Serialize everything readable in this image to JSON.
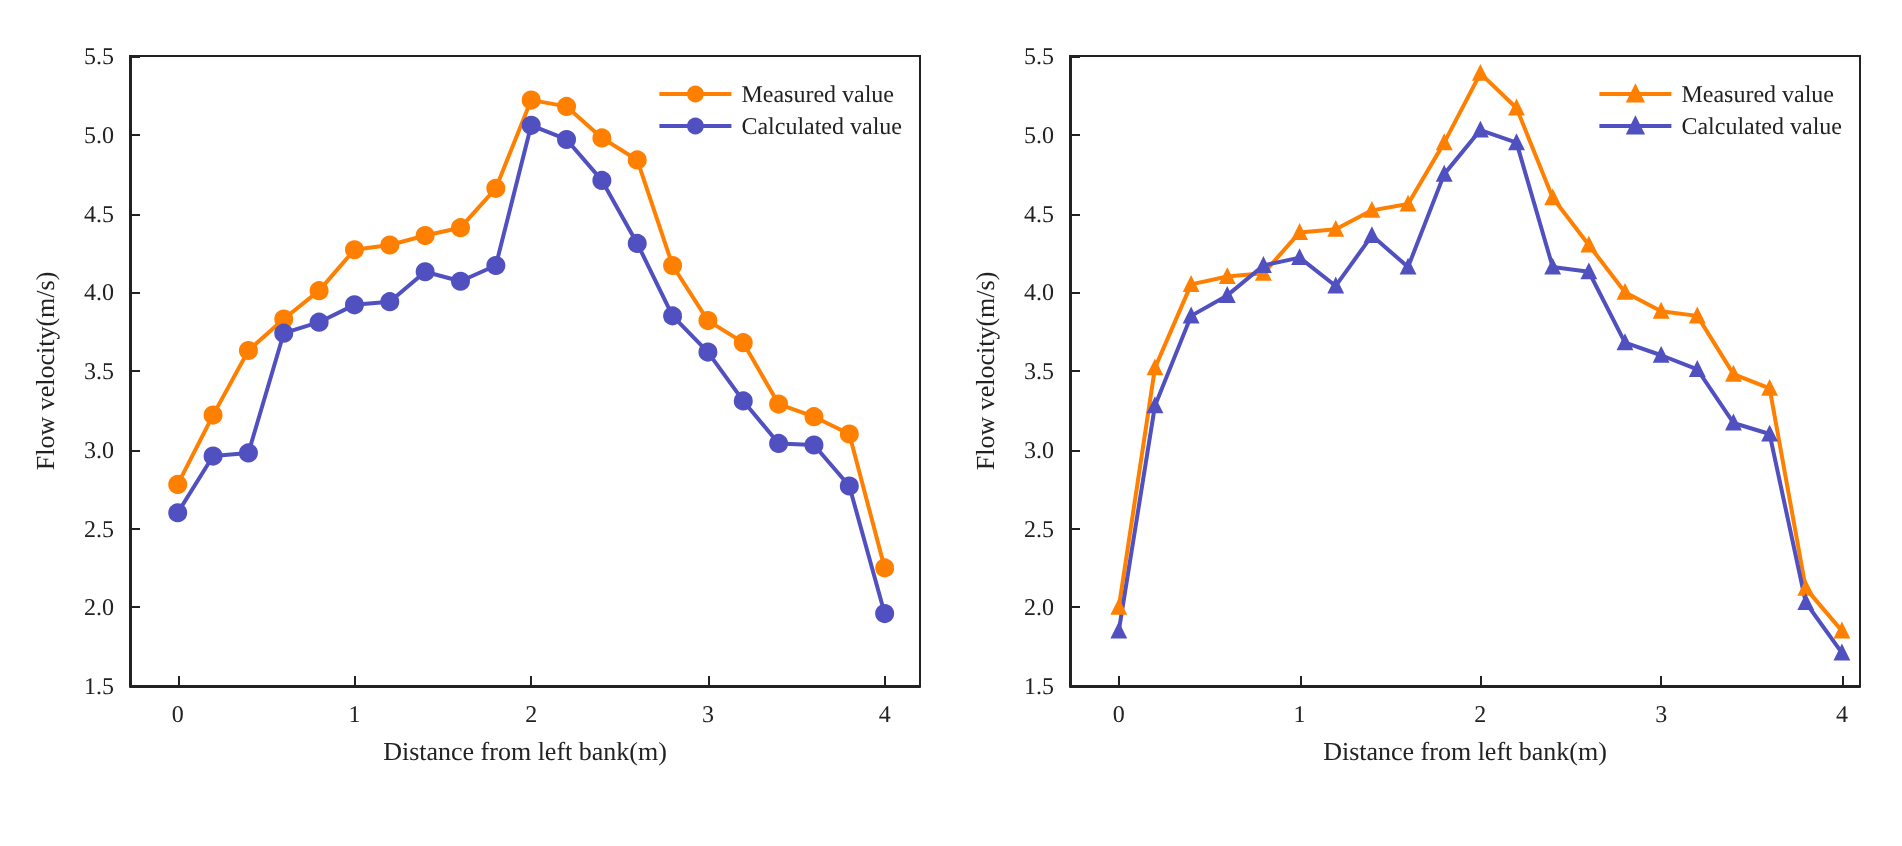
{
  "chart_data": [
    {
      "type": "line",
      "xlabel": "Distance from left bank(m)",
      "ylabel": "Flow velocity(m/s)",
      "x": [
        0,
        0.2,
        0.4,
        0.6,
        0.8,
        1,
        1.2,
        1.4,
        1.6,
        1.8,
        2,
        2.2,
        2.4,
        2.6,
        2.8,
        3,
        3.2,
        3.4,
        3.6,
        3.8,
        4
      ],
      "series": [
        {
          "name": "Measured value",
          "color": "#ff8000",
          "values": [
            2.78,
            3.22,
            3.63,
            3.83,
            4.01,
            4.27,
            4.3,
            4.36,
            4.41,
            4.66,
            5.22,
            5.18,
            4.98,
            4.84,
            4.17,
            3.82,
            3.68,
            3.29,
            3.21,
            3.1,
            2.25
          ]
        },
        {
          "name": "Calculated value",
          "color": "#5050c0",
          "values": [
            2.6,
            2.96,
            2.98,
            3.74,
            3.81,
            3.92,
            3.94,
            4.13,
            4.07,
            4.17,
            5.06,
            4.97,
            4.71,
            4.31,
            3.85,
            3.62,
            3.31,
            3.04,
            3.03,
            2.77,
            1.96
          ]
        }
      ],
      "xlim": [
        -0.27,
        4.2
      ],
      "xticks": [
        0,
        1,
        2,
        3,
        4
      ],
      "ylim": [
        1.5,
        5.5
      ],
      "yticks": [
        1.5,
        {
          "value": 2,
          "label": "2.0"
        },
        2.5,
        {
          "value": 3,
          "label": "3.0"
        },
        3.5,
        {
          "value": 4,
          "label": "4.0"
        },
        4.5,
        {
          "value": 5,
          "label": "5.0"
        },
        5.5
      ],
      "grid": false,
      "legend": "top right",
      "marker": "circle",
      "line_style": "solid"
    },
    {
      "type": "line",
      "xlabel": "Distance from left bank(m)",
      "ylabel": "Flow velocity(m/s)",
      "x": [
        0,
        0.2,
        0.4,
        0.6,
        0.8,
        1,
        1.2,
        1.4,
        1.6,
        1.8,
        2,
        2.2,
        2.4,
        2.6,
        2.8,
        3,
        3.2,
        3.4,
        3.6,
        3.8,
        4
      ],
      "series": [
        {
          "name": "Measured value",
          "color": "#ff8000",
          "values": [
            2.0,
            3.52,
            4.05,
            4.1,
            4.12,
            4.38,
            4.4,
            4.52,
            4.56,
            4.95,
            5.39,
            5.17,
            4.6,
            4.3,
            4.0,
            3.88,
            3.85,
            3.48,
            3.39,
            2.12,
            1.85
          ]
        },
        {
          "name": "Calculated value",
          "color": "#5050c0",
          "values": [
            1.85,
            3.28,
            3.85,
            3.98,
            4.17,
            4.22,
            4.04,
            4.36,
            4.16,
            4.75,
            5.03,
            4.95,
            4.16,
            4.13,
            3.68,
            3.6,
            3.51,
            3.17,
            3.1,
            2.03,
            1.71
          ]
        }
      ],
      "xlim": [
        -0.27,
        4.1
      ],
      "xticks": [
        0,
        1,
        2,
        3,
        4
      ],
      "ylim": [
        1.5,
        5.5
      ],
      "yticks": [
        1.5,
        {
          "value": 2,
          "label": "2.0"
        },
        2.5,
        {
          "value": 3,
          "label": "3.0"
        },
        3.5,
        {
          "value": 4,
          "label": "4.0"
        },
        4.5,
        {
          "value": 5,
          "label": "5.0"
        },
        5.5
      ],
      "grid": false,
      "legend": "top right",
      "marker": "triangle",
      "line_style": "solid"
    }
  ]
}
